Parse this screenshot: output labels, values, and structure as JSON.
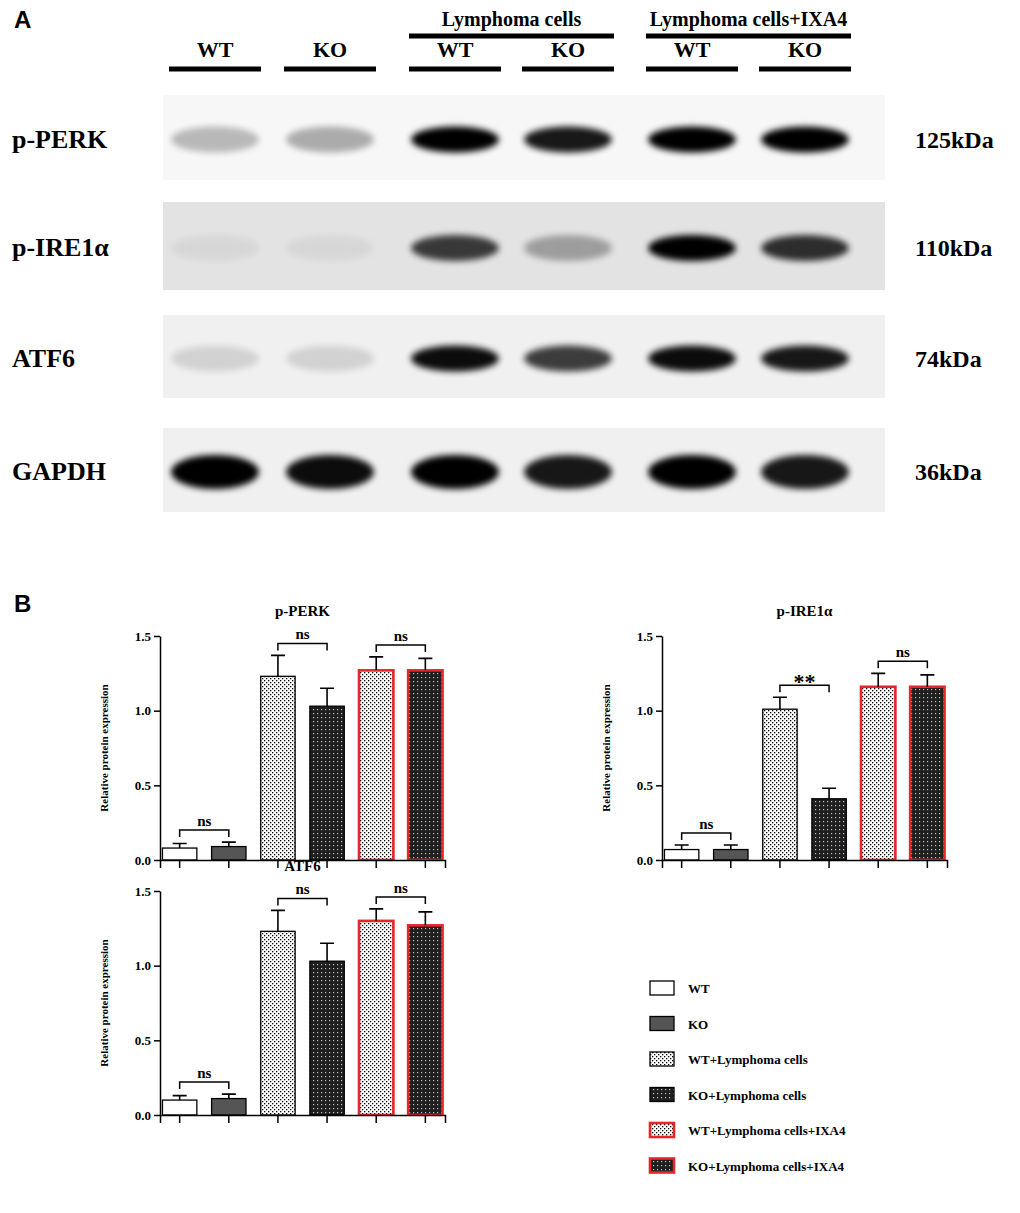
{
  "panel_labels": [
    "A",
    "B"
  ],
  "blot": {
    "lanes": [
      "WT",
      "KO",
      "WT",
      "KO",
      "WT",
      "KO"
    ],
    "groups": [
      "Lymphoma cells",
      "Lymphoma cells+IXA4"
    ],
    "rows": [
      {
        "label": "p-PERK",
        "size": "125kDa",
        "bands": [
          0.25,
          0.3,
          1,
          0.9,
          1,
          1
        ]
      },
      {
        "label": "p-IRE1α",
        "size": "110kDa",
        "bands": [
          0.05,
          0.05,
          0.75,
          0.3,
          1,
          0.8
        ]
      },
      {
        "label": "ATF6",
        "size": "74kDa",
        "bands": [
          0.12,
          0.12,
          0.95,
          0.75,
          0.95,
          0.9
        ]
      },
      {
        "label": "GAPDH",
        "size": "36kDa",
        "bands": [
          1,
          0.95,
          1,
          0.9,
          1,
          0.9
        ]
      }
    ]
  },
  "legend_entries": [
    {
      "name": "WT",
      "color": "#000000"
    },
    {
      "name": "KO",
      "color": "#000000"
    },
    {
      "name": "WT+Lymphoma cells",
      "color": "#000000"
    },
    {
      "name": "KO+Lymphoma cells",
      "color": "#000000"
    },
    {
      "name": "WT+Lymphoma cells+IXA4",
      "color": "#e8262a"
    },
    {
      "name": "KO+Lymphoma cells+IXA4",
      "color": "#e8262a"
    }
  ],
  "chart_data": [
    {
      "type": "bar",
      "title": "p-PERK",
      "y_label": "Relative protein expression",
      "categories": [
        null,
        null,
        null,
        null,
        null,
        null
      ],
      "values": [
        0.08,
        0.09,
        1.23,
        1.03,
        1.27,
        1.27
      ],
      "errors": [
        0.03,
        0.03,
        0.14,
        0.12,
        0.09,
        0.08
      ],
      "annotations": [
        "ns",
        "ns",
        "ns"
      ],
      "ylim": [
        0,
        1.5
      ],
      "yticks": [
        {
          "value": 0,
          "label": "0.0"
        },
        {
          "value": 0.5,
          "label": "0.5"
        },
        {
          "value": 1,
          "label": "1.0"
        },
        {
          "value": 1.5,
          "label": "1.5"
        }
      ],
      "tick_labels": "y"
    },
    {
      "type": "bar",
      "title": "p-IRE1α",
      "y_label": "Relative protein expression",
      "categories": [
        null,
        null,
        null,
        null,
        null,
        null
      ],
      "values": [
        0.07,
        0.07,
        1.01,
        0.41,
        1.16,
        1.16
      ],
      "errors": [
        0.03,
        0.03,
        0.08,
        0.07,
        0.09,
        0.08
      ],
      "annotations": [
        "ns",
        "**",
        "ns"
      ],
      "ylim": [
        0,
        1.5
      ],
      "yticks": [
        {
          "value": 0,
          "label": "0.0"
        },
        {
          "value": 0.5,
          "label": "0.5"
        },
        {
          "value": 1,
          "label": "1.0"
        },
        {
          "value": 1.5,
          "label": "1.5"
        }
      ],
      "tick_labels": "y"
    },
    {
      "type": "bar",
      "title": "ATF6",
      "y_label": "Relative protein expression",
      "categories": [
        null,
        null,
        null,
        null,
        null,
        null
      ],
      "values": [
        0.1,
        0.11,
        1.23,
        1.03,
        1.3,
        1.27
      ],
      "errors": [
        0.03,
        0.03,
        0.14,
        0.12,
        0.08,
        0.09
      ],
      "annotations": [
        "ns",
        "ns",
        "ns"
      ],
      "ylim": [
        0,
        1.5
      ],
      "yticks": [
        {
          "value": 0,
          "label": "0.0"
        },
        {
          "value": 0.5,
          "label": "0.5"
        },
        {
          "value": 1,
          "label": "1.0"
        },
        {
          "value": 1.5,
          "label": "1.5"
        }
      ],
      "tick_labels": "y"
    }
  ]
}
